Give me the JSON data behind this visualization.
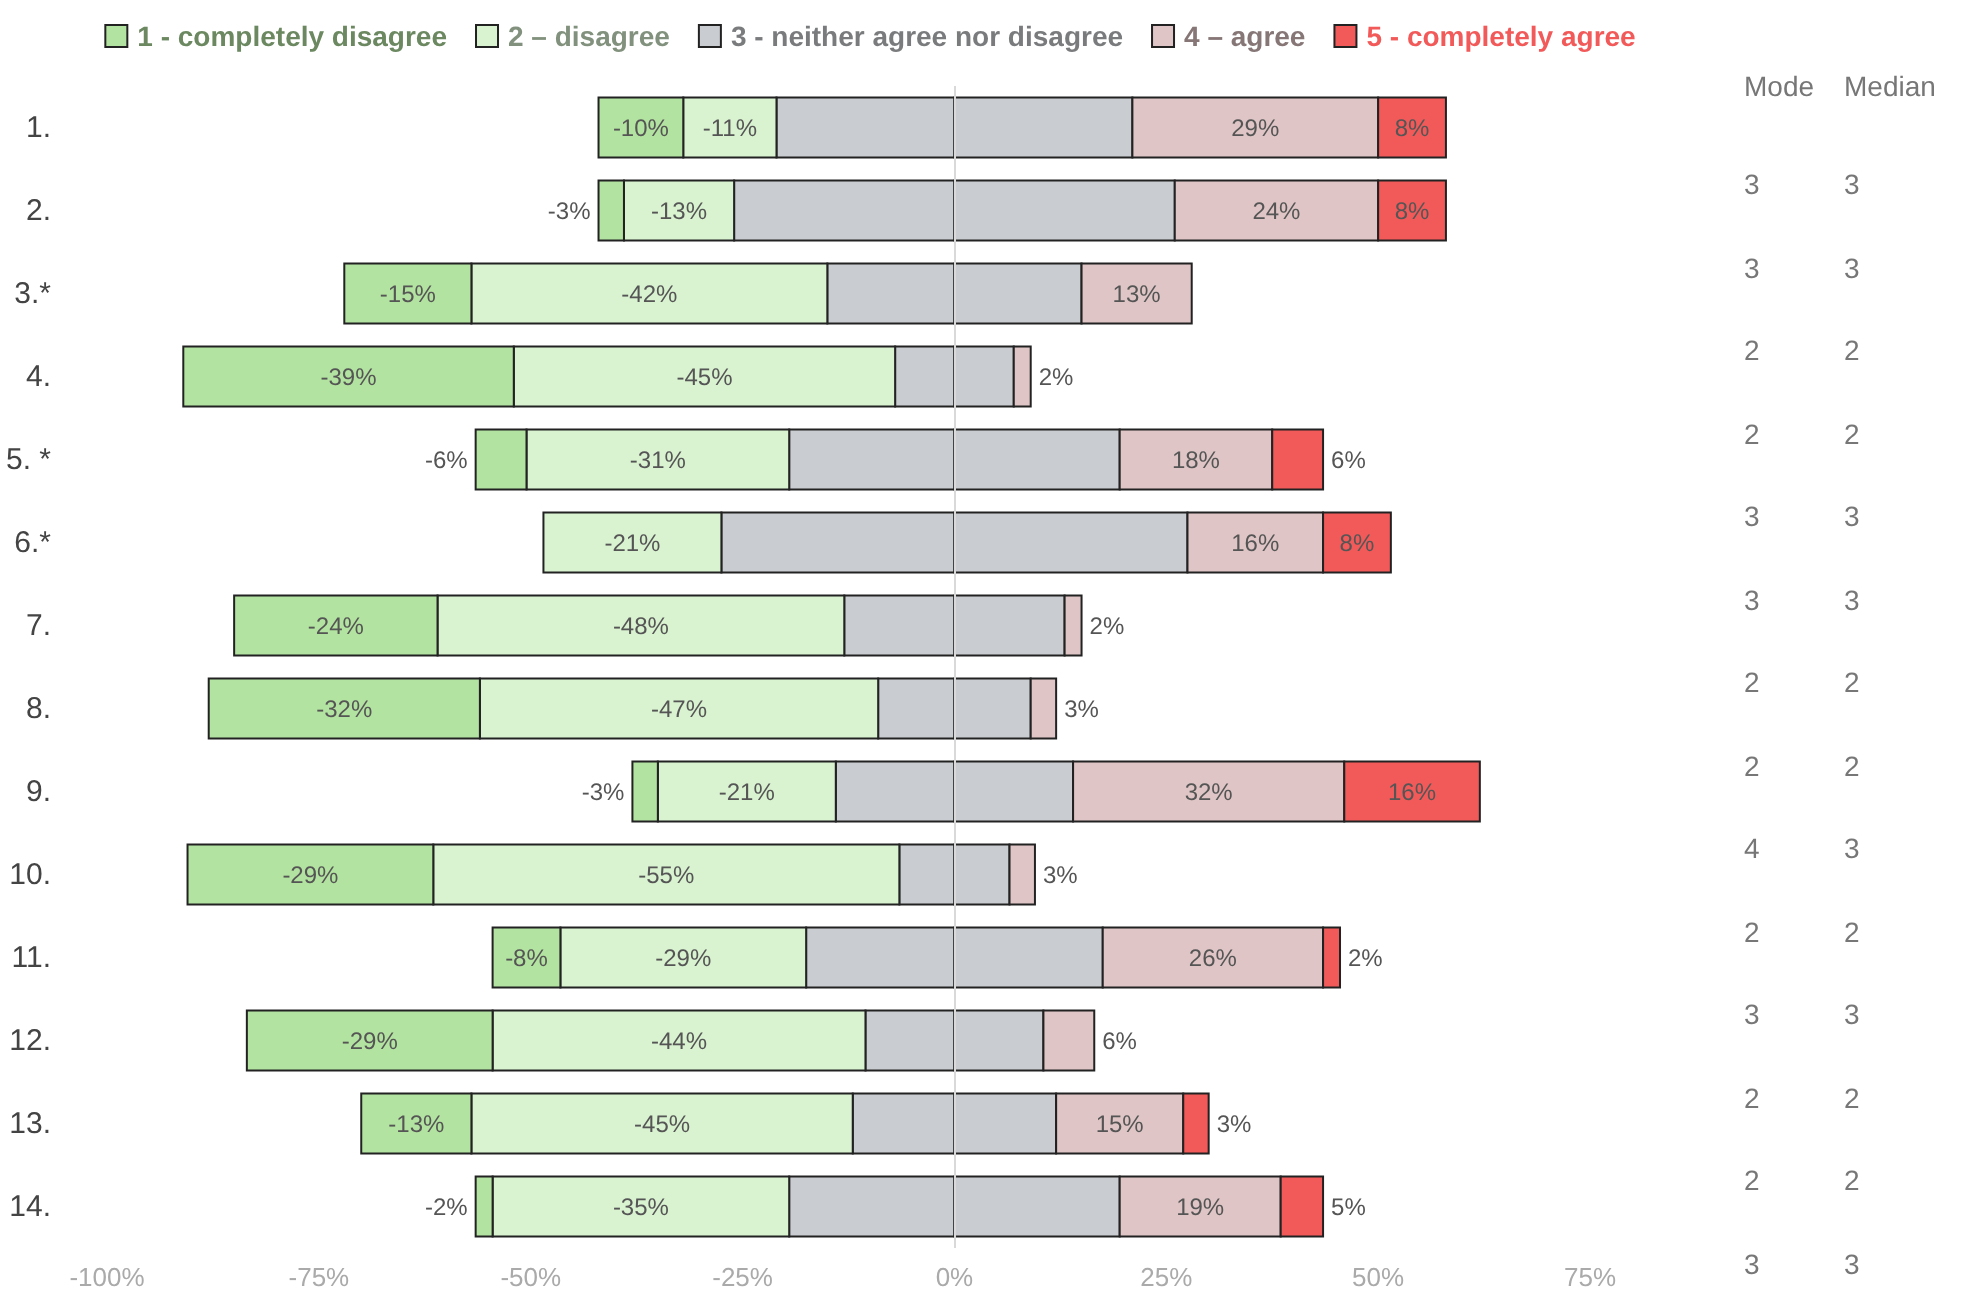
{
  "chart_data": [
    {
      "type": "bar",
      "orientation": "horizontal",
      "stacked": true,
      "categories": [
        "1.",
        "2.",
        "3.*",
        "4.",
        "5. *",
        "6.*",
        "7.",
        "8.",
        "9.",
        "10.",
        "11.",
        "12.",
        "13.",
        "14."
      ],
      "series": [
        {
          "name": "3 - neither agree nor disagree",
          "color": "#c9cdd1",
          "values": [
            -21,
            -26,
            -15,
            -7,
            -19.5,
            -27.5,
            -13,
            -9,
            -14,
            -6.5,
            -17.5,
            -10.5,
            -12,
            -19.5
          ]
        },
        {
          "color": "#c9cdd1",
          "values": [
            21,
            26,
            15,
            7,
            19.5,
            27.5,
            13,
            9,
            14,
            6.5,
            17.5,
            10.5,
            12,
            19.5
          ]
        },
        {
          "name": "2 – disagree",
          "color": "#d9f2d0",
          "values": [
            -11,
            -13,
            -42,
            -45,
            -31,
            -21,
            -48,
            -47,
            -21,
            -55,
            -29,
            -44,
            -45,
            -35
          ],
          "value_labels": [
            "-11%",
            "-13%",
            "-42%",
            "-45%",
            "-31%",
            "-21%",
            "-48%",
            "-47%",
            "-21%",
            "-55%",
            "-29%",
            "-44%",
            "-45%",
            "-35%"
          ]
        },
        {
          "name": "4 – agree",
          "color": "#dfc5c5",
          "values": [
            29,
            24,
            13,
            2,
            18,
            16,
            2,
            3,
            32,
            3,
            26,
            6,
            15,
            19
          ],
          "value_labels": [
            "29%",
            "24%",
            "13%",
            "2%",
            "18%",
            "16%",
            "2%",
            "3%",
            "32%",
            "3%",
            "26%",
            "6%",
            "15%",
            "19%"
          ]
        },
        {
          "name": "1 - completely disagree",
          "color": "#b3e3a0",
          "values": [
            -10,
            -3,
            -15,
            -39,
            -6,
            null,
            -24,
            -32,
            -3,
            -29,
            -8,
            -29,
            -13,
            -2
          ],
          "value_labels": [
            "-10%",
            "-3%",
            "-15%",
            "-39%",
            "-6%",
            null,
            "-24%",
            "-32%",
            "-3%",
            "-29%",
            "-8%",
            "-29%",
            "-13%",
            "-2%"
          ]
        },
        {
          "name": "5 - completely agree",
          "color": "#f25a5a",
          "values": [
            8,
            8,
            null,
            null,
            6,
            8,
            null,
            null,
            16,
            null,
            2,
            null,
            3,
            5
          ],
          "value_labels": [
            "8%",
            "8%",
            null,
            null,
            "6%",
            "8%",
            null,
            null,
            "16%",
            null,
            "2%",
            null,
            "3%",
            "5%"
          ]
        }
      ],
      "xlim": [
        -100,
        75
      ],
      "xticks": [
        {
          "value": -100,
          "label": "-100%"
        },
        {
          "value": -75,
          "label": "-75%"
        },
        {
          "value": -50,
          "label": "-50%"
        },
        {
          "value": -25,
          "label": "-25%"
        },
        {
          "value": 0,
          "label": "0%"
        },
        {
          "value": 25,
          "label": "25%"
        },
        {
          "value": 50,
          "label": "50%"
        },
        {
          "value": 75,
          "label": "75%"
        }
      ],
      "ref_lines": [
        {
          "axis": "x",
          "value": 0,
          "color": "#d9d9d9"
        }
      ],
      "grid": false,
      "legend": "top"
    },
    {
      "type": "other",
      "annotations": [
        "Mode",
        "Median",
        "3",
        "3",
        "3",
        "3",
        "2",
        "2",
        "2",
        "2",
        "3",
        "3",
        "3",
        "3",
        "2",
        "2",
        "2",
        "2",
        "4",
        "3",
        "2",
        "2",
        "3",
        "3",
        "2",
        "2",
        "2",
        "2",
        "3",
        "3"
      ]
    }
  ]
}
